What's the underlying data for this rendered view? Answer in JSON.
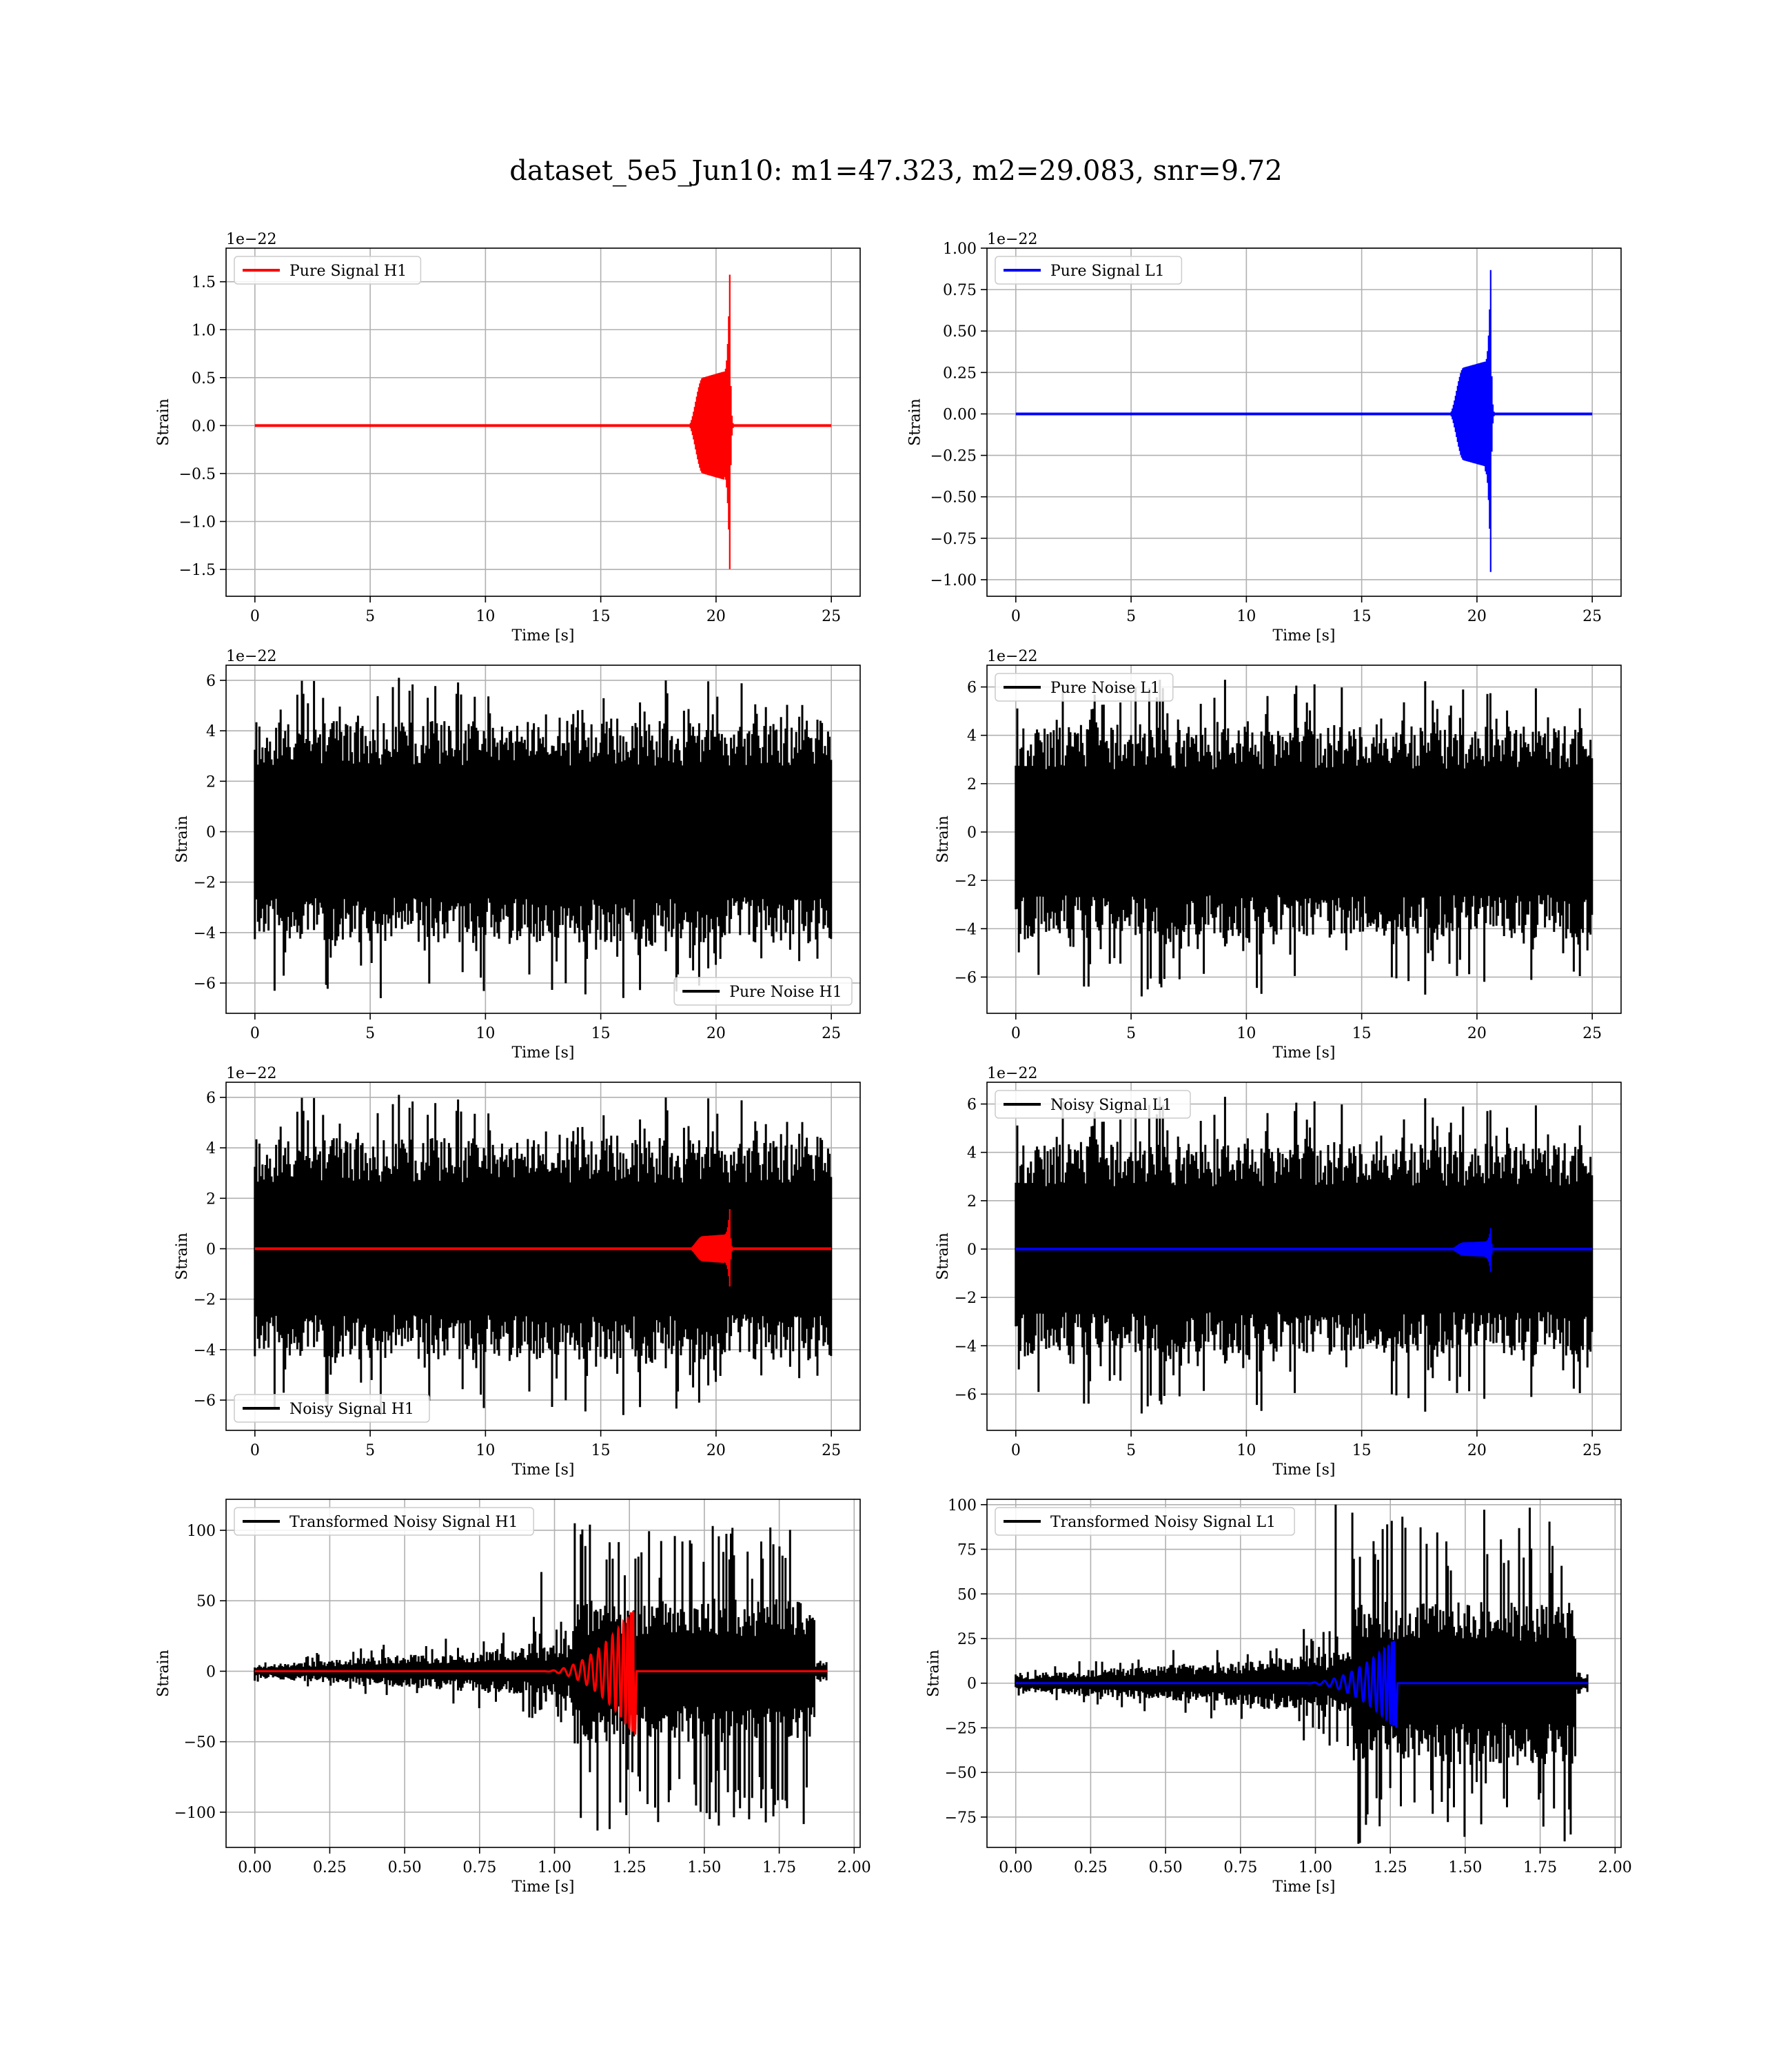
{
  "figure": {
    "title": "dataset_5e5_Jun10: m1=47.323, m2=29.083, snr=9.72"
  },
  "chart_data": [
    {
      "type": "line",
      "kind": "chirp",
      "color": "#ff0000",
      "series": [
        {
          "name": "Pure Signal H1",
          "color": "#ff0000"
        }
      ],
      "legend": "top-left",
      "xlabel": "Time [s]",
      "ylabel": "Strain",
      "offset_text": "1e−22",
      "xlim": [
        -1.25,
        26.25
      ],
      "ylim": [
        -1.78,
        1.85
      ],
      "xticks": [
        0,
        5,
        10,
        15,
        20,
        25
      ],
      "xtick_labels": [
        "0",
        "5",
        "10",
        "15",
        "20",
        "25"
      ],
      "yticks": [
        -1.5,
        -1.0,
        -0.5,
        0.0,
        0.5,
        1.0,
        1.5
      ],
      "ytick_labels": [
        "−1.5",
        "−1.0",
        "−0.5",
        "0.0",
        "0.5",
        "1.0",
        "1.5"
      ],
      "signal": {
        "t_start": 0,
        "t_end": 25,
        "t_merger": 20.6,
        "inspiral_start": 18.8,
        "plateau_amp": 0.5,
        "peak_pos": 1.65,
        "peak_neg": -1.57
      },
      "grid": true
    },
    {
      "type": "line",
      "kind": "chirp",
      "color": "#0000ff",
      "series": [
        {
          "name": "Pure Signal L1",
          "color": "#0000ff"
        }
      ],
      "legend": "top-left",
      "xlabel": "Time [s]",
      "ylabel": "Strain",
      "offset_text": "1e−22",
      "xlim": [
        -1.25,
        26.25
      ],
      "ylim": [
        -1.1,
        1.0
      ],
      "xticks": [
        0,
        5,
        10,
        15,
        20,
        25
      ],
      "xtick_labels": [
        "0",
        "5",
        "10",
        "15",
        "20",
        "25"
      ],
      "yticks": [
        -1.0,
        -0.75,
        -0.5,
        -0.25,
        0.0,
        0.25,
        0.5,
        0.75,
        1.0
      ],
      "ytick_labels": [
        "−1.00",
        "−0.75",
        "−0.50",
        "−0.25",
        "0.00",
        "0.25",
        "0.50",
        "0.75",
        "1.00"
      ],
      "signal": {
        "t_start": 0,
        "t_end": 25,
        "t_merger": 20.6,
        "inspiral_start": 18.8,
        "plateau_amp": 0.28,
        "peak_pos": 0.91,
        "peak_neg": -1.0
      },
      "grid": true
    },
    {
      "type": "line",
      "kind": "noise",
      "color": "#000000",
      "series": [
        {
          "name": "Pure Noise H1",
          "color": "#000000"
        }
      ],
      "legend": "bottom-right",
      "xlabel": "Time [s]",
      "ylabel": "Strain",
      "offset_text": "1e−22",
      "xlim": [
        -1.25,
        26.25
      ],
      "ylim": [
        -7.2,
        6.6
      ],
      "xticks": [
        0,
        5,
        10,
        15,
        20,
        25
      ],
      "xtick_labels": [
        "0",
        "5",
        "10",
        "15",
        "20",
        "25"
      ],
      "yticks": [
        -6,
        -4,
        -2,
        0,
        2,
        4,
        6
      ],
      "ytick_labels": [
        "−6",
        "−4",
        "−2",
        "0",
        "2",
        "4",
        "6"
      ],
      "noise": {
        "t_start": 0,
        "t_end": 25,
        "band": 4.0,
        "max": 6.1,
        "min": -6.6,
        "seed": 11
      },
      "grid": true
    },
    {
      "type": "line",
      "kind": "noise",
      "color": "#000000",
      "series": [
        {
          "name": "Pure Noise L1",
          "color": "#000000"
        }
      ],
      "legend": "top-left",
      "xlabel": "Time [s]",
      "ylabel": "Strain",
      "offset_text": "1e−22",
      "xlim": [
        -1.25,
        26.25
      ],
      "ylim": [
        -7.5,
        6.9
      ],
      "xticks": [
        0,
        5,
        10,
        15,
        20,
        25
      ],
      "xtick_labels": [
        "0",
        "5",
        "10",
        "15",
        "20",
        "25"
      ],
      "yticks": [
        -6,
        -4,
        -2,
        0,
        2,
        4,
        6
      ],
      "ytick_labels": [
        "−6",
        "−4",
        "−2",
        "0",
        "2",
        "4",
        "6"
      ],
      "noise": {
        "t_start": 0,
        "t_end": 25,
        "band": 4.0,
        "max": 6.3,
        "min": -6.8,
        "seed": 23
      },
      "grid": true
    },
    {
      "type": "line",
      "kind": "noisy_chirp",
      "color": "#000000",
      "signal_color": "#ff0000",
      "series": [
        {
          "name": "Noisy Signal H1",
          "color": "#000000"
        }
      ],
      "legend": "bottom-left",
      "xlabel": "Time [s]",
      "ylabel": "Strain",
      "offset_text": "1e−22",
      "xlim": [
        -1.25,
        26.25
      ],
      "ylim": [
        -7.2,
        6.6
      ],
      "xticks": [
        0,
        5,
        10,
        15,
        20,
        25
      ],
      "xtick_labels": [
        "0",
        "5",
        "10",
        "15",
        "20",
        "25"
      ],
      "yticks": [
        -6,
        -4,
        -2,
        0,
        2,
        4,
        6
      ],
      "ytick_labels": [
        "−6",
        "−4",
        "−2",
        "0",
        "2",
        "4",
        "6"
      ],
      "noise": {
        "t_start": 0,
        "t_end": 25,
        "band": 4.0,
        "max": 6.1,
        "min": -6.6,
        "seed": 11
      },
      "signal": {
        "t_start": 0,
        "t_end": 25,
        "t_merger": 20.6,
        "inspiral_start": 18.8,
        "plateau_amp": 0.5,
        "peak_pos": 1.65,
        "peak_neg": -1.57
      },
      "grid": true
    },
    {
      "type": "line",
      "kind": "noisy_chirp",
      "color": "#000000",
      "signal_color": "#0000ff",
      "series": [
        {
          "name": "Noisy Signal L1",
          "color": "#000000"
        }
      ],
      "legend": "top-left",
      "xlabel": "Time [s]",
      "ylabel": "Strain",
      "offset_text": "1e−22",
      "xlim": [
        -1.25,
        26.25
      ],
      "ylim": [
        -7.5,
        6.9
      ],
      "xticks": [
        0,
        5,
        10,
        15,
        20,
        25
      ],
      "xtick_labels": [
        "0",
        "5",
        "10",
        "15",
        "20",
        "25"
      ],
      "yticks": [
        -6,
        -4,
        -2,
        0,
        2,
        4,
        6
      ],
      "ytick_labels": [
        "−6",
        "−4",
        "−2",
        "0",
        "2",
        "4",
        "6"
      ],
      "noise": {
        "t_start": 0,
        "t_end": 25,
        "band": 4.0,
        "max": 6.3,
        "min": -6.8,
        "seed": 23
      },
      "signal": {
        "t_start": 0,
        "t_end": 25,
        "t_merger": 20.6,
        "inspiral_start": 18.8,
        "plateau_amp": 0.28,
        "peak_pos": 0.91,
        "peak_neg": -1.0
      },
      "grid": true
    },
    {
      "type": "line",
      "kind": "transformed",
      "color": "#000000",
      "signal_color": "#ff0000",
      "series": [
        {
          "name": "Transformed Noisy Signal H1",
          "color": "#000000"
        }
      ],
      "legend": "top-left",
      "xlabel": "Time [s]",
      "ylabel": "Strain",
      "offset_text": "",
      "xlim": [
        -0.096,
        2.02
      ],
      "ylim": [
        -125,
        122
      ],
      "xticks": [
        0.0,
        0.25,
        0.5,
        0.75,
        1.0,
        1.25,
        1.5,
        1.75,
        2.0
      ],
      "xtick_labels": [
        "0.00",
        "0.25",
        "0.50",
        "0.75",
        "1.00",
        "1.25",
        "1.50",
        "1.75",
        "2.00"
      ],
      "yticks": [
        -100,
        -50,
        0,
        50,
        100
      ],
      "ytick_labels": [
        "−100",
        "−50",
        "0",
        "50",
        "100"
      ],
      "transformed": {
        "t_start": 0,
        "t_end": 1.91,
        "t_jump": 1.07,
        "t_drop": 1.87,
        "pre_band_start": 4,
        "pre_band_end": 16,
        "post_band": 45,
        "max": 105,
        "min": -113,
        "t_merger": 1.265,
        "sig_start": 0.95,
        "sig_peak": 45,
        "seed": 37
      },
      "grid": true
    },
    {
      "type": "line",
      "kind": "transformed",
      "color": "#000000",
      "signal_color": "#0000ff",
      "series": [
        {
          "name": "Transformed Noisy Signal L1",
          "color": "#000000"
        }
      ],
      "legend": "top-left",
      "xlabel": "Time [s]",
      "ylabel": "Strain",
      "offset_text": "",
      "xlim": [
        -0.096,
        2.02
      ],
      "ylim": [
        -92,
        103
      ],
      "xticks": [
        0.0,
        0.25,
        0.5,
        0.75,
        1.0,
        1.25,
        1.5,
        1.75,
        2.0
      ],
      "xtick_labels": [
        "0.00",
        "0.25",
        "0.50",
        "0.75",
        "1.00",
        "1.25",
        "1.50",
        "1.75",
        "2.00"
      ],
      "yticks": [
        -75,
        -50,
        -25,
        0,
        25,
        50,
        75,
        100
      ],
      "ytick_labels": [
        "−75",
        "−50",
        "−25",
        "0",
        "25",
        "50",
        "75",
        "100"
      ],
      "transformed": {
        "t_start": 0,
        "t_end": 1.91,
        "t_jump": 1.12,
        "t_drop": 1.87,
        "pre_band_start": 4,
        "pre_band_end": 14,
        "post_band": 40,
        "max": 100,
        "min": -90,
        "t_merger": 1.265,
        "sig_start": 0.95,
        "sig_peak": 25,
        "seed": 53
      },
      "grid": true
    }
  ]
}
